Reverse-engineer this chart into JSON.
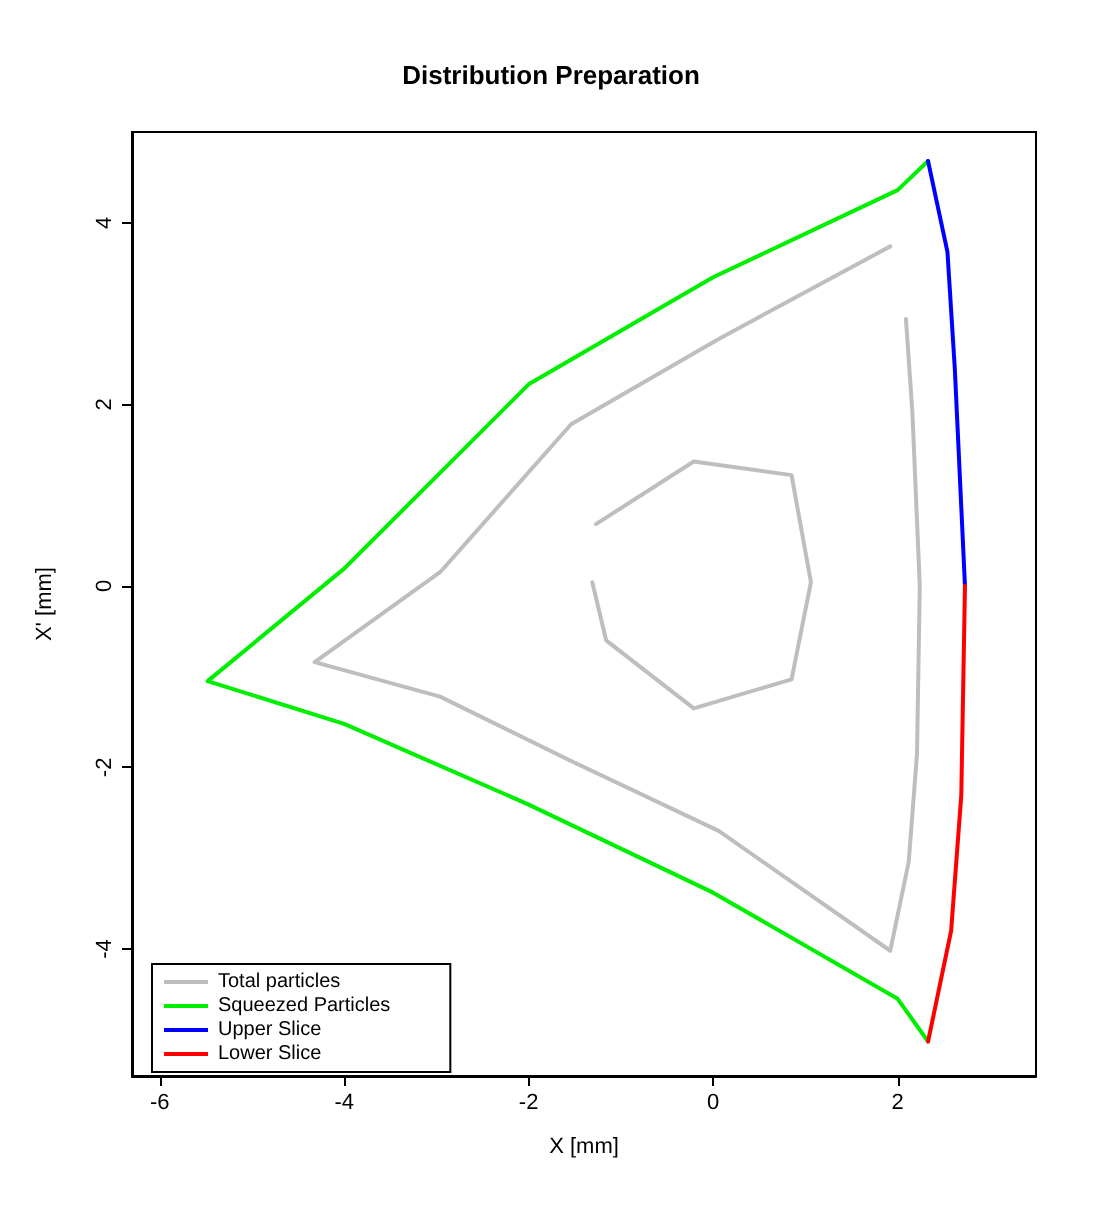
{
  "chart_data": {
    "type": "line",
    "title": "Distribution Preparation",
    "xlabel": "X [mm]",
    "ylabel": "X' [mm]",
    "xlim": [
      -6.3,
      3.5
    ],
    "ylim": [
      -5.4,
      5.0
    ],
    "xticks": [
      -6,
      -4,
      -2,
      0,
      2
    ],
    "yticks": [
      -4,
      -2,
      0,
      2,
      4
    ],
    "grid": false,
    "legend": "bottom left",
    "marker": "none",
    "line_style": "solid",
    "series": [
      {
        "name": "Total particles",
        "color": "#bebebe",
        "x": [
          1.92,
          0.06,
          -1.54,
          -2.96,
          -4.32,
          -2.96,
          -1.54,
          0.06,
          1.92,
          2.12,
          2.21,
          2.24,
          2.16,
          2.09,
          null,
          -1.27,
          -0.21,
          0.85,
          1.06,
          0.85,
          -0.21,
          -1.16,
          -1.31
        ],
        "values": [
          3.74,
          2.72,
          1.78,
          0.15,
          -0.84,
          -1.22,
          -1.93,
          -2.7,
          -4.02,
          -3.04,
          -1.85,
          0,
          1.91,
          2.94,
          null,
          0.68,
          1.37,
          1.22,
          0.04,
          -1.03,
          -1.35,
          -0.6,
          0.04
        ]
      },
      {
        "name": "Squeezed Particles",
        "color": "#00ee00",
        "x": [
          2.33,
          2.0,
          0,
          -2,
          -4,
          -5.48,
          -4,
          -2,
          0,
          2,
          2.33
        ],
        "values": [
          4.68,
          4.36,
          3.4,
          2.22,
          0.19,
          -1.05,
          -1.52,
          -2.41,
          -3.38,
          -4.55,
          -5.02
        ]
      },
      {
        "name": "Upper Slice",
        "color": "#0000ff",
        "x": [
          2.33,
          2.54,
          2.62,
          2.73
        ],
        "values": [
          4.68,
          3.68,
          2.39,
          0
        ]
      },
      {
        "name": "Lower Slice",
        "color": "#ff0000",
        "x": [
          2.73,
          2.69,
          2.58,
          2.33
        ],
        "values": [
          0,
          -2.31,
          -3.8,
          -5.02
        ]
      }
    ]
  }
}
